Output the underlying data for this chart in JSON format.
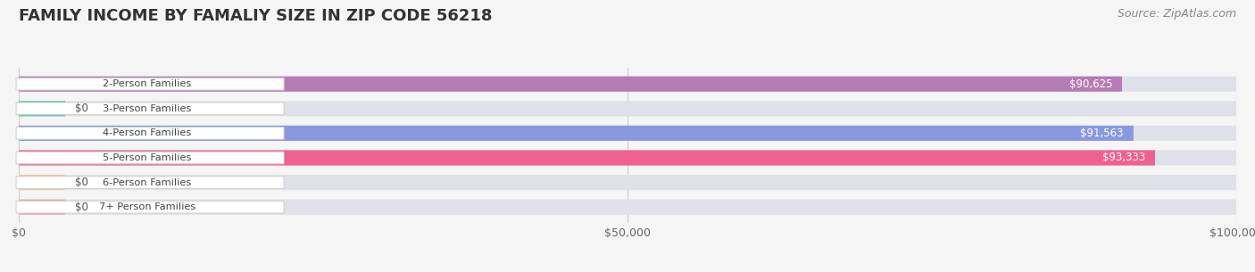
{
  "title": "FAMILY INCOME BY FAMALIY SIZE IN ZIP CODE 56218",
  "source": "Source: ZipAtlas.com",
  "categories": [
    "2-Person Families",
    "3-Person Families",
    "4-Person Families",
    "5-Person Families",
    "6-Person Families",
    "7+ Person Families"
  ],
  "values": [
    90625,
    0,
    91563,
    93333,
    0,
    0
  ],
  "bar_colors": [
    "#b57bb5",
    "#5ec4b5",
    "#8899dd",
    "#f06090",
    "#f5c48a",
    "#f5a0a0"
  ],
  "xlim": [
    0,
    100000
  ],
  "xticks": [
    0,
    50000,
    100000
  ],
  "xtick_labels": [
    "$0",
    "$50,000",
    "$100,000"
  ],
  "background_color": "#f5f5f5",
  "bar_bg_color": "#e0e0e8",
  "title_fontsize": 13,
  "source_fontsize": 9,
  "bar_height": 0.62,
  "value_labels": [
    "$90,625",
    "$0",
    "$91,563",
    "$93,333",
    "$0",
    "$0"
  ]
}
